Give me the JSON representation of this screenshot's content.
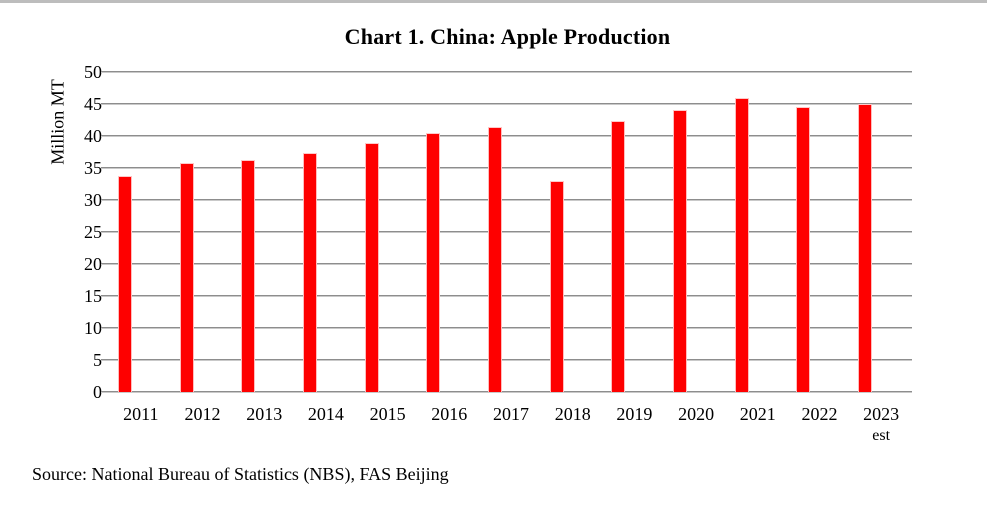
{
  "page": {
    "title": "Chart 1. China: Apple Production",
    "source": "Source: National Bureau of Statistics (NBS), FAS Beijing"
  },
  "chart_data": {
    "type": "bar",
    "title": "Chart 1. China: Apple Production",
    "xlabel": "",
    "ylabel": "Million MT",
    "categories": [
      "2011",
      "2012",
      "2013",
      "2014",
      "2015",
      "2016",
      "2017",
      "2018",
      "2019",
      "2020",
      "2021",
      "2022",
      "2023"
    ],
    "last_category_suffix": "est",
    "values": [
      33.7,
      35.8,
      36.3,
      37.4,
      38.9,
      40.4,
      41.4,
      33.0,
      42.4,
      44.0,
      46.0,
      44.5,
      45.0
    ],
    "ylim": [
      0,
      50
    ],
    "ytick_step": 5,
    "yticks": [
      0,
      5,
      10,
      15,
      20,
      25,
      30,
      35,
      40,
      45,
      50
    ],
    "grid": true,
    "legend_position": "none",
    "bar_color": "#fe0000",
    "gridline_color": "#a6a6a6",
    "source": "Source: National Bureau of Statistics (NBS), FAS Beijing"
  }
}
